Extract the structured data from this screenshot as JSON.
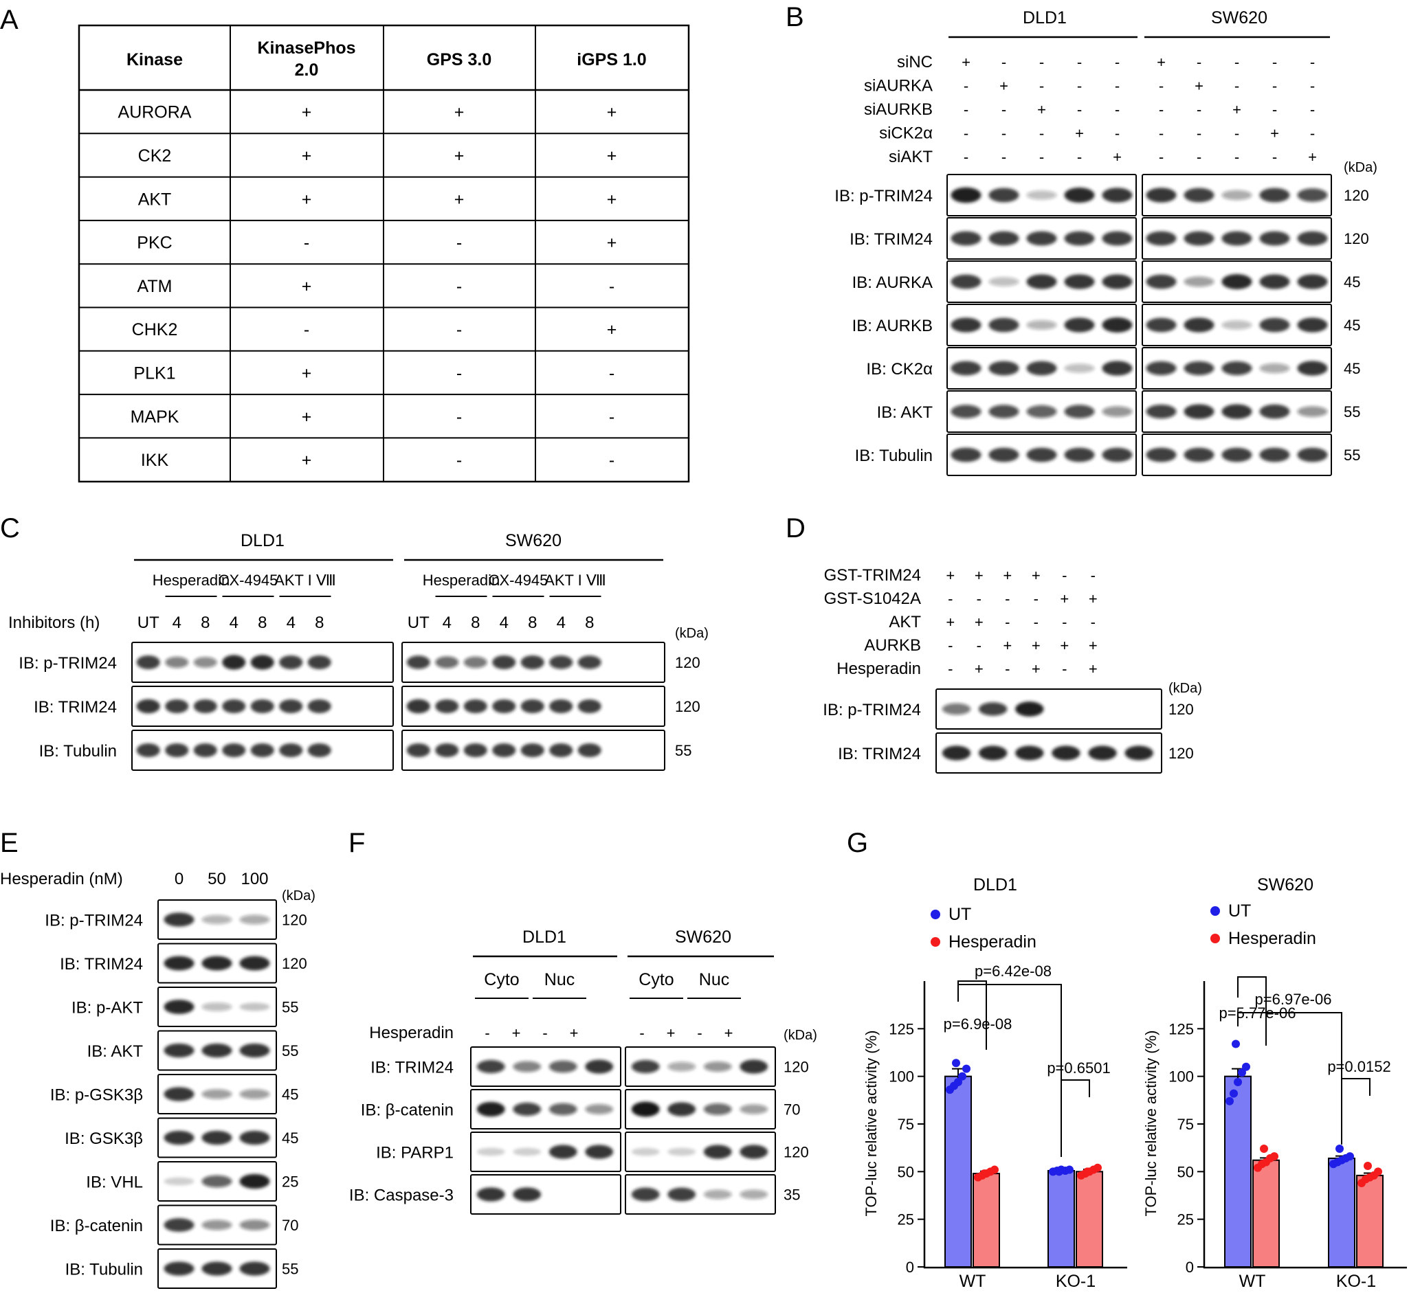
{
  "panels": {
    "A": "A",
    "B": "B",
    "C": "C",
    "D": "D",
    "E": "E",
    "F": "F",
    "G": "G"
  },
  "kinase_table": {
    "headers": [
      "Kinase",
      "KinasePhos 2.0",
      "GPS 3.0",
      "iGPS 1.0"
    ],
    "rows": [
      [
        "AURORA",
        "+",
        "+",
        "+"
      ],
      [
        "CK2",
        "+",
        "+",
        "+"
      ],
      [
        "AKT",
        "+",
        "+",
        "+"
      ],
      [
        "PKC",
        "-",
        "-",
        "+"
      ],
      [
        "ATM",
        "+",
        "-",
        "-"
      ],
      [
        "CHK2",
        "-",
        "-",
        "+"
      ],
      [
        "PLK1",
        "+",
        "-",
        "-"
      ],
      [
        "MAPK",
        "+",
        "-",
        "-"
      ],
      [
        "IKK",
        "+",
        "-",
        "-"
      ]
    ]
  },
  "panel_b": {
    "cells": [
      "DLD1",
      "SW620"
    ],
    "conditions": [
      {
        "label": "siNC",
        "signs": [
          "+",
          "-",
          "-",
          "-",
          "-"
        ]
      },
      {
        "label": "siAURKA",
        "signs": [
          "-",
          "+",
          "-",
          "-",
          "-"
        ]
      },
      {
        "label": "siAURKB",
        "signs": [
          "-",
          "-",
          "+",
          "-",
          "-"
        ]
      },
      {
        "label": "siCK2α",
        "signs": [
          "-",
          "-",
          "-",
          "+",
          "-"
        ]
      },
      {
        "label": "siAKT",
        "signs": [
          "-",
          "-",
          "-",
          "-",
          "+"
        ]
      }
    ],
    "kda_header": "(kDa)",
    "blots": [
      {
        "label": "IB: p-TRIM24",
        "kda": "120",
        "dld1": [
          0.95,
          0.8,
          0.15,
          0.9,
          0.85
        ],
        "sw620": [
          0.85,
          0.8,
          0.25,
          0.8,
          0.7
        ]
      },
      {
        "label": "IB: TRIM24",
        "kda": "120",
        "dld1": [
          0.8,
          0.8,
          0.8,
          0.8,
          0.8
        ],
        "sw620": [
          0.8,
          0.8,
          0.8,
          0.8,
          0.8
        ]
      },
      {
        "label": "IB: AURKA",
        "kda": "45",
        "dld1": [
          0.8,
          0.15,
          0.85,
          0.85,
          0.85
        ],
        "sw620": [
          0.8,
          0.3,
          0.9,
          0.85,
          0.85
        ]
      },
      {
        "label": "IB: AURKB",
        "kda": "45",
        "dld1": [
          0.85,
          0.8,
          0.2,
          0.85,
          0.9
        ],
        "sw620": [
          0.8,
          0.85,
          0.15,
          0.8,
          0.85
        ]
      },
      {
        "label": "IB: CK2α",
        "kda": "45",
        "dld1": [
          0.8,
          0.8,
          0.8,
          0.15,
          0.85
        ],
        "sw620": [
          0.75,
          0.75,
          0.75,
          0.25,
          0.85
        ]
      },
      {
        "label": "IB: AKT",
        "kda": "55",
        "dld1": [
          0.7,
          0.7,
          0.6,
          0.7,
          0.35
        ],
        "sw620": [
          0.75,
          0.85,
          0.85,
          0.8,
          0.35
        ]
      },
      {
        "label": "IB: Tubulin",
        "kda": "55",
        "dld1": [
          0.8,
          0.8,
          0.8,
          0.8,
          0.8
        ],
        "sw620": [
          0.8,
          0.8,
          0.8,
          0.8,
          0.8
        ]
      }
    ]
  },
  "panel_c": {
    "cells": [
      "DLD1",
      "SW620"
    ],
    "inhibitors": [
      "Hesperadin",
      "CX-4945",
      "AKT I Ⅷ"
    ],
    "row_label": "Inhibitors (h)",
    "lanes": [
      "UT",
      "4",
      "8",
      "4",
      "8",
      "4",
      "8"
    ],
    "kda_header": "(kDa)",
    "blots": [
      {
        "label": "IB: p-TRIM24",
        "kda": "120",
        "dld1": [
          0.8,
          0.45,
          0.4,
          0.9,
          0.9,
          0.8,
          0.8
        ],
        "sw620": [
          0.75,
          0.55,
          0.5,
          0.8,
          0.8,
          0.75,
          0.75
        ]
      },
      {
        "label": "IB: TRIM24",
        "kda": "120",
        "dld1": [
          0.85,
          0.8,
          0.8,
          0.8,
          0.8,
          0.8,
          0.8
        ],
        "sw620": [
          0.85,
          0.8,
          0.8,
          0.8,
          0.8,
          0.8,
          0.8
        ]
      },
      {
        "label": "IB: Tubulin",
        "kda": "55",
        "dld1": [
          0.8,
          0.8,
          0.8,
          0.8,
          0.8,
          0.8,
          0.8
        ],
        "sw620": [
          0.8,
          0.8,
          0.8,
          0.8,
          0.8,
          0.8,
          0.8
        ]
      }
    ]
  },
  "panel_d": {
    "conditions": [
      {
        "label": "GST-TRIM24",
        "signs": [
          "+",
          "+",
          "+",
          "+",
          "-",
          "-"
        ]
      },
      {
        "label": "GST-S1042A",
        "signs": [
          "-",
          "-",
          "-",
          "-",
          "+",
          "+"
        ]
      },
      {
        "label": "AKT",
        "signs": [
          "+",
          "+",
          "-",
          "-",
          "-",
          "-"
        ]
      },
      {
        "label": "AURKB",
        "signs": [
          "-",
          "-",
          "+",
          "+",
          "+",
          "+"
        ]
      },
      {
        "label": "Hesperadin",
        "signs": [
          "-",
          "+",
          "-",
          "+",
          "-",
          "+"
        ]
      }
    ],
    "kda_header": "(kDa)",
    "blots": [
      {
        "label": "IB: p-TRIM24",
        "kda": "120",
        "lanes": [
          0.5,
          0.75,
          0.95,
          0,
          0,
          0
        ]
      },
      {
        "label": "IB: TRIM24",
        "kda": "120",
        "lanes": [
          0.9,
          0.9,
          0.9,
          0.9,
          0.9,
          0.9
        ]
      }
    ]
  },
  "panel_e": {
    "row_label": "Hesperadin (nM)",
    "doses": [
      "0",
      "50",
      "100"
    ],
    "kda_header": "(kDa)",
    "blots": [
      {
        "label": "IB: p-TRIM24",
        "kda": "120",
        "lanes": [
          0.85,
          0.2,
          0.25
        ]
      },
      {
        "label": "IB: TRIM24",
        "kda": "120",
        "lanes": [
          0.9,
          0.9,
          0.9
        ]
      },
      {
        "label": "IB: p-AKT",
        "kda": "55",
        "lanes": [
          0.9,
          0.15,
          0.1
        ]
      },
      {
        "label": "IB: AKT",
        "kda": "55",
        "lanes": [
          0.85,
          0.85,
          0.85
        ]
      },
      {
        "label": "IB: p-GSK3β",
        "kda": "45",
        "lanes": [
          0.85,
          0.3,
          0.3
        ]
      },
      {
        "label": "IB: GSK3β",
        "kda": "45",
        "lanes": [
          0.85,
          0.85,
          0.85
        ]
      },
      {
        "label": "IB: VHL",
        "kda": "25",
        "lanes": [
          0.05,
          0.6,
          0.95
        ]
      },
      {
        "label": "IB: β-catenin",
        "kda": "70",
        "lanes": [
          0.8,
          0.35,
          0.4
        ]
      },
      {
        "label": "IB: Tubulin",
        "kda": "55",
        "lanes": [
          0.85,
          0.85,
          0.85
        ]
      }
    ]
  },
  "panel_f": {
    "cells": [
      "DLD1",
      "SW620"
    ],
    "fractions": [
      "Cyto",
      "Nuc",
      "Cyto",
      "Nuc"
    ],
    "row_label": "Hesperadin",
    "signs": [
      "-",
      "+",
      "-",
      "+"
    ],
    "kda_header": "(kDa)",
    "blots": [
      {
        "label": "IB: TRIM24",
        "kda": "120",
        "dld1": [
          0.75,
          0.45,
          0.6,
          0.85
        ],
        "sw620": [
          0.75,
          0.25,
          0.35,
          0.85
        ]
      },
      {
        "label": "IB: β-catenin",
        "kda": "70",
        "dld1": [
          0.95,
          0.75,
          0.6,
          0.35
        ],
        "sw620": [
          1.0,
          0.85,
          0.55,
          0.3
        ]
      },
      {
        "label": "IB: PARP1",
        "kda": "120",
        "dld1": [
          0.05,
          0.05,
          0.85,
          0.85
        ],
        "sw620": [
          0.05,
          0.05,
          0.85,
          0.85
        ]
      },
      {
        "label": "IB: Caspase-3",
        "kda": "35",
        "dld1": [
          0.85,
          0.85,
          0,
          0
        ],
        "sw620": [
          0.8,
          0.8,
          0.25,
          0.25
        ]
      }
    ]
  },
  "chart_data": [
    {
      "type": "bar",
      "title": "DLD1",
      "ylabel": "TOP-luc relative activity (%)",
      "categories": [
        "WT",
        "KO-1"
      ],
      "ylim": [
        0,
        150
      ],
      "yticks": [
        "0",
        "25",
        "50",
        "75",
        "100",
        "125"
      ],
      "series": [
        {
          "name": "UT",
          "color": "#7b7cf5",
          "point_color": "#1f1fe8",
          "values": [
            100,
            50.5
          ],
          "points": [
            [
              93,
              95,
              97,
              100,
              104,
              107
            ],
            [
              50,
              50.5,
              51,
              50.5,
              51,
              50
            ]
          ]
        },
        {
          "name": "Hesperadin",
          "color": "#f77f80",
          "point_color": "#f41c1c",
          "values": [
            49,
            50
          ],
          "points": [
            [
              47,
              48,
              49,
              50,
              51,
              49
            ],
            [
              48,
              49,
              50,
              51,
              52,
              50
            ]
          ]
        }
      ],
      "annotations": [
        "p=6.9e-08",
        "p=6.42e-08",
        "p=0.6501"
      ]
    },
    {
      "type": "bar",
      "title": "SW620",
      "ylabel": "TOP-luc relative activity (%)",
      "categories": [
        "WT",
        "KO-1"
      ],
      "ylim": [
        0,
        150
      ],
      "yticks": [
        "0",
        "25",
        "50",
        "75",
        "100",
        "125"
      ],
      "series": [
        {
          "name": "UT",
          "color": "#7b7cf5",
          "point_color": "#1f1fe8",
          "values": [
            100,
            57
          ],
          "points": [
            [
              87,
              91,
              97,
              102,
              105,
              117
            ],
            [
              54,
              55,
              56,
              57,
              58,
              62
            ]
          ]
        },
        {
          "name": "Hesperadin",
          "color": "#f77f80",
          "point_color": "#f41c1c",
          "values": [
            56,
            48
          ],
          "points": [
            [
              52,
              54,
              55,
              57,
              58,
              62
            ],
            [
              44,
              46,
              47,
              48,
              50,
              53
            ]
          ]
        }
      ],
      "annotations": [
        "p=5.77e-06",
        "p=6.97e-06",
        "p=0.0152"
      ]
    }
  ]
}
